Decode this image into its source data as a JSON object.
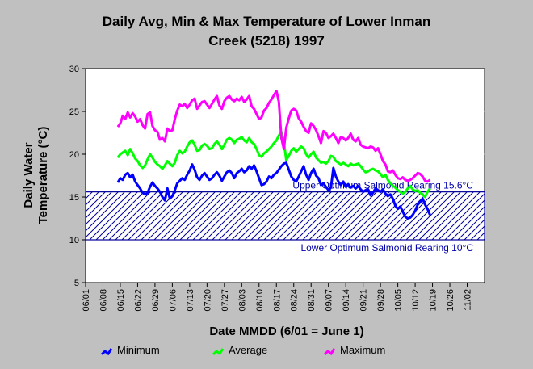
{
  "chart_data": {
    "type": "line",
    "title_lines": [
      "Daily Avg, Min & Max Temperature of Lower Inman",
      "Creek (5218) 1997"
    ],
    "xlabel": "Date MMDD (6/01 = June 1)",
    "ylabel_lines": [
      "Daily Water",
      "Temperature (°C)"
    ],
    "ylim": [
      5,
      30
    ],
    "yticks": [
      5,
      10,
      15,
      20,
      25,
      30
    ],
    "x_tick_labels": [
      "06/01",
      "06/08",
      "06/15",
      "06/22",
      "06/29",
      "07/06",
      "07/13",
      "07/20",
      "07/27",
      "08/03",
      "08/10",
      "08/17",
      "08/24",
      "08/31",
      "09/07",
      "09/14",
      "09/21",
      "09/28",
      "10/05",
      "10/12",
      "10/19",
      "10/26",
      "11/02"
    ],
    "x_tick_day_offsets": [
      0,
      7,
      14,
      21,
      28,
      35,
      42,
      49,
      56,
      63,
      70,
      77,
      84,
      91,
      98,
      105,
      112,
      119,
      126,
      133,
      140,
      147,
      154
    ],
    "x_day_range": [
      0,
      161
    ],
    "series": [
      {
        "name": "Minimum",
        "color": "#0000ff",
        "start_day": 13,
        "values": [
          16.7,
          17.2,
          17.0,
          17.6,
          17.8,
          17.3,
          17.6,
          16.8,
          16.4,
          16.0,
          15.5,
          15.3,
          15.5,
          16.2,
          16.7,
          16.3,
          16.0,
          15.6,
          15.0,
          14.6,
          16.0,
          14.8,
          15.1,
          15.8,
          16.6,
          16.9,
          17.2,
          17.0,
          17.6,
          18.1,
          18.8,
          18.2,
          17.3,
          17.0,
          17.5,
          17.8,
          17.4,
          17.0,
          17.2,
          17.6,
          17.9,
          17.5,
          16.9,
          17.4,
          17.9,
          18.1,
          17.8,
          17.2,
          17.8,
          18.0,
          18.3,
          17.9,
          18.1,
          18.6,
          18.3,
          18.7,
          18.0,
          17.2,
          16.4,
          16.5,
          16.8,
          17.4,
          17.2,
          17.6,
          17.8,
          18.2,
          18.6,
          18.9,
          19.0,
          18.2,
          17.4,
          17.0,
          16.8,
          17.4,
          18.0,
          18.6,
          17.6,
          17.0,
          17.8,
          18.3,
          17.5,
          17.2,
          16.4,
          16.6,
          16.2,
          15.8,
          16.1,
          18.4,
          17.4,
          16.8,
          16.4,
          16.8,
          16.2,
          16.5,
          16.1,
          16.3,
          16.0,
          16.3,
          15.9,
          15.6,
          15.8,
          15.9,
          15.2,
          15.5,
          16.0,
          15.8,
          15.6,
          15.9,
          15.4,
          15.1,
          15.3,
          14.8,
          14.0,
          13.6,
          13.9,
          13.3,
          12.7,
          12.5,
          12.6,
          12.9,
          13.4,
          14.1,
          14.4,
          14.8,
          14.1,
          13.6,
          12.9
        ]
      },
      {
        "name": "Average",
        "color": "#00ff00",
        "start_day": 13,
        "values": [
          19.6,
          20.0,
          20.2,
          20.4,
          19.9,
          20.6,
          20.1,
          19.5,
          19.2,
          18.7,
          18.4,
          18.7,
          19.4,
          20.0,
          19.6,
          19.1,
          18.8,
          18.6,
          18.3,
          18.7,
          19.2,
          18.9,
          18.6,
          19.0,
          19.9,
          20.4,
          20.1,
          20.3,
          20.9,
          21.4,
          21.6,
          21.1,
          20.4,
          20.5,
          21.0,
          21.2,
          21.0,
          20.6,
          20.7,
          21.2,
          21.5,
          21.1,
          20.6,
          21.1,
          21.7,
          21.9,
          21.7,
          21.3,
          21.7,
          21.8,
          22.0,
          21.6,
          21.4,
          21.9,
          21.4,
          21.2,
          20.6,
          19.9,
          19.7,
          20.1,
          20.3,
          20.6,
          20.9,
          21.3,
          21.6,
          22.2,
          22.6,
          21.4,
          19.3,
          19.8,
          20.4,
          20.7,
          20.3,
          20.6,
          20.9,
          20.7,
          20.0,
          19.6,
          20.0,
          20.3,
          19.6,
          19.3,
          19.0,
          19.1,
          18.9,
          19.2,
          19.8,
          19.7,
          19.2,
          19.0,
          18.8,
          19.0,
          18.8,
          18.6,
          18.9,
          18.7,
          18.8,
          18.9,
          18.6,
          18.2,
          17.9,
          18.0,
          18.2,
          18.3,
          18.1,
          18.0,
          17.7,
          17.3,
          17.6,
          17.0,
          16.6,
          16.3,
          16.1,
          15.8,
          15.6,
          15.4,
          15.6,
          16.0,
          16.3,
          15.9,
          15.7,
          15.8,
          15.5,
          15.3,
          15.0,
          15.6,
          16.0
        ]
      },
      {
        "name": "Maximum",
        "color": "#ff00ff",
        "start_day": 13,
        "values": [
          23.2,
          23.6,
          24.5,
          24.1,
          24.9,
          24.3,
          24.8,
          24.4,
          23.8,
          24.1,
          23.4,
          23.0,
          24.7,
          24.9,
          23.3,
          22.8,
          22.6,
          21.7,
          21.9,
          21.5,
          23.0,
          22.7,
          22.8,
          24.1,
          25.1,
          25.8,
          25.6,
          25.9,
          25.4,
          25.8,
          26.3,
          26.5,
          25.3,
          25.7,
          26.1,
          26.2,
          25.8,
          25.4,
          25.9,
          26.4,
          26.8,
          25.7,
          25.3,
          26.2,
          26.6,
          26.8,
          26.4,
          26.2,
          26.5,
          26.3,
          26.7,
          26.1,
          26.4,
          26.8,
          25.6,
          25.3,
          24.7,
          24.1,
          24.3,
          25.1,
          25.4,
          26.0,
          26.4,
          26.9,
          27.4,
          26.1,
          21.9,
          20.6,
          23.1,
          24.2,
          25.1,
          25.3,
          25.1,
          24.2,
          23.8,
          23.2,
          22.7,
          22.5,
          23.6,
          23.3,
          22.8,
          22.1,
          21.3,
          22.7,
          22.5,
          21.9,
          22.1,
          22.4,
          21.9,
          21.3,
          22.0,
          21.9,
          21.6,
          21.9,
          22.4,
          21.7,
          21.5,
          21.9,
          21.1,
          20.9,
          20.8,
          20.7,
          20.9,
          20.8,
          20.4,
          20.7,
          20.0,
          19.2,
          18.8,
          18.0,
          17.9,
          18.1,
          17.6,
          17.2,
          17.1,
          17.3,
          17.0,
          16.9,
          17.0,
          17.2,
          17.5,
          17.8,
          17.7,
          17.4,
          16.9,
          16.8,
          17.0
        ]
      }
    ],
    "bands": {
      "upper_value": 15.6,
      "lower_value": 10,
      "upper_label": "Upper Optimum Salmonid Rearing 15.6°C",
      "lower_label": "Lower Optimum Salmonid Rearing 10°C",
      "color": "#000099"
    },
    "legend_position": "bottom"
  }
}
